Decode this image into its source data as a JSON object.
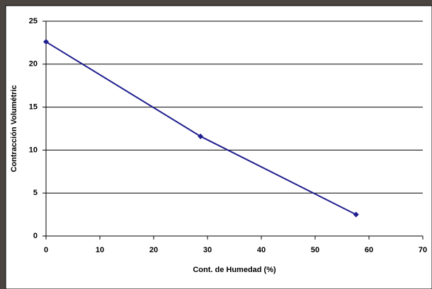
{
  "chart_data": {
    "type": "line",
    "x_label": "Cont. de Humedad (%)",
    "y_label": "Contracción Volumétric",
    "series": [
      {
        "color": "#1f1f8f",
        "x": [
          0,
          28.7,
          57.6
        ],
        "values": [
          22.6,
          11.6,
          2.5
        ]
      }
    ],
    "xlim": [
      0,
      70
    ],
    "xticks": [
      0,
      10,
      20,
      30,
      40,
      50,
      60,
      70
    ],
    "ylim": [
      0,
      25
    ],
    "yticks": [
      0,
      5,
      10,
      15,
      20,
      25
    ],
    "grid": true
  }
}
